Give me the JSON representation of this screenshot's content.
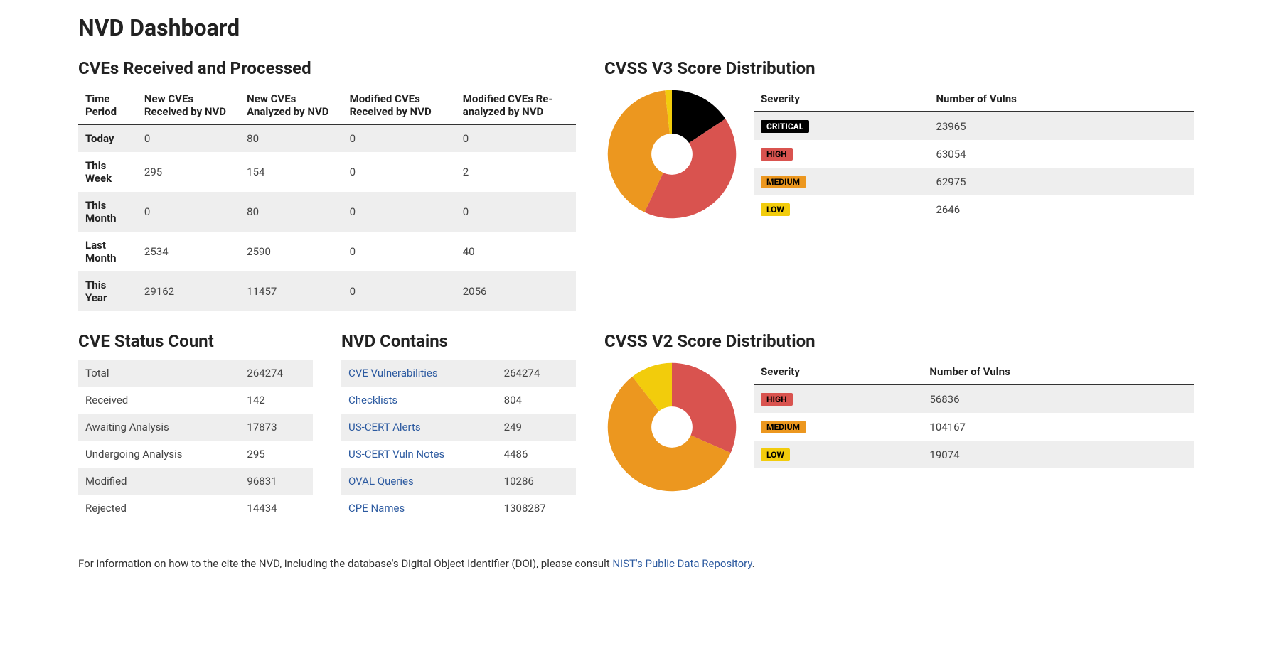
{
  "page_title": "NVD Dashboard",
  "colors": {
    "critical": "#000000",
    "high": "#d9534f",
    "medium": "#ec971f",
    "low": "#f2cc0c",
    "critical_text": "#ffffff",
    "high_text": "#000000",
    "medium_text": "#000000",
    "low_text": "#000000",
    "link": "#2c5aa0",
    "row_stripe": "#eeeeee",
    "background": "#ffffff"
  },
  "cve_table": {
    "title": "CVEs Received and Processed",
    "columns": [
      "Time Period",
      "New CVEs Received by NVD",
      "New CVEs Analyzed by NVD",
      "Modified CVEs Received by NVD",
      "Modified CVEs Re-analyzed by NVD"
    ],
    "rows": [
      {
        "label": "Today",
        "values": [
          "0",
          "80",
          "0",
          "0"
        ]
      },
      {
        "label": "This Week",
        "values": [
          "295",
          "154",
          "0",
          "2"
        ]
      },
      {
        "label": "This Month",
        "values": [
          "0",
          "80",
          "0",
          "0"
        ]
      },
      {
        "label": "Last Month",
        "values": [
          "2534",
          "2590",
          "0",
          "40"
        ]
      },
      {
        "label": "This Year",
        "values": [
          "29162",
          "11457",
          "0",
          "2056"
        ]
      }
    ]
  },
  "cvss_v3": {
    "title": "CVSS V3 Score Distribution",
    "type": "donut",
    "columns": [
      "Severity",
      "Number of Vulns"
    ],
    "inner_radius": 0.32,
    "start_angle_deg": -90,
    "background_color": "#ffffff",
    "slices": [
      {
        "label": "CRITICAL",
        "value": 23965,
        "color": "#000000",
        "text_color": "#ffffff"
      },
      {
        "label": "HIGH",
        "value": 63054,
        "color": "#d9534f",
        "text_color": "#000000"
      },
      {
        "label": "MEDIUM",
        "value": 62975,
        "color": "#ec971f",
        "text_color": "#000000"
      },
      {
        "label": "LOW",
        "value": 2646,
        "color": "#f2cc0c",
        "text_color": "#000000"
      }
    ]
  },
  "status_count": {
    "title": "CVE Status Count",
    "rows": [
      {
        "label": "Total",
        "value": "264274"
      },
      {
        "label": "Received",
        "value": "142"
      },
      {
        "label": "Awaiting Analysis",
        "value": "17873"
      },
      {
        "label": "Undergoing Analysis",
        "value": "295"
      },
      {
        "label": "Modified",
        "value": "96831"
      },
      {
        "label": "Rejected",
        "value": "14434"
      }
    ]
  },
  "nvd_contains": {
    "title": "NVD Contains",
    "rows": [
      {
        "label": "CVE Vulnerabilities",
        "value": "264274",
        "link": true
      },
      {
        "label": "Checklists",
        "value": "804",
        "link": true
      },
      {
        "label": "US-CERT Alerts",
        "value": "249",
        "link": true
      },
      {
        "label": "US-CERT Vuln Notes",
        "value": "4486",
        "link": true
      },
      {
        "label": "OVAL Queries",
        "value": "10286",
        "link": true
      },
      {
        "label": "CPE Names",
        "value": "1308287",
        "link": true
      }
    ]
  },
  "cvss_v2": {
    "title": "CVSS V2 Score Distribution",
    "type": "donut",
    "columns": [
      "Severity",
      "Number of Vulns"
    ],
    "inner_radius": 0.32,
    "start_angle_deg": -90,
    "background_color": "#ffffff",
    "slices": [
      {
        "label": "HIGH",
        "value": 56836,
        "color": "#d9534f",
        "text_color": "#000000"
      },
      {
        "label": "MEDIUM",
        "value": 104167,
        "color": "#ec971f",
        "text_color": "#000000"
      },
      {
        "label": "LOW",
        "value": 19074,
        "color": "#f2cc0c",
        "text_color": "#000000"
      }
    ]
  },
  "footer": {
    "prefix": "For information on how to the cite the NVD, including the database's Digital Object Identifier (DOI), please consult ",
    "link_text": "NIST's Public Data Repository",
    "suffix": "."
  }
}
